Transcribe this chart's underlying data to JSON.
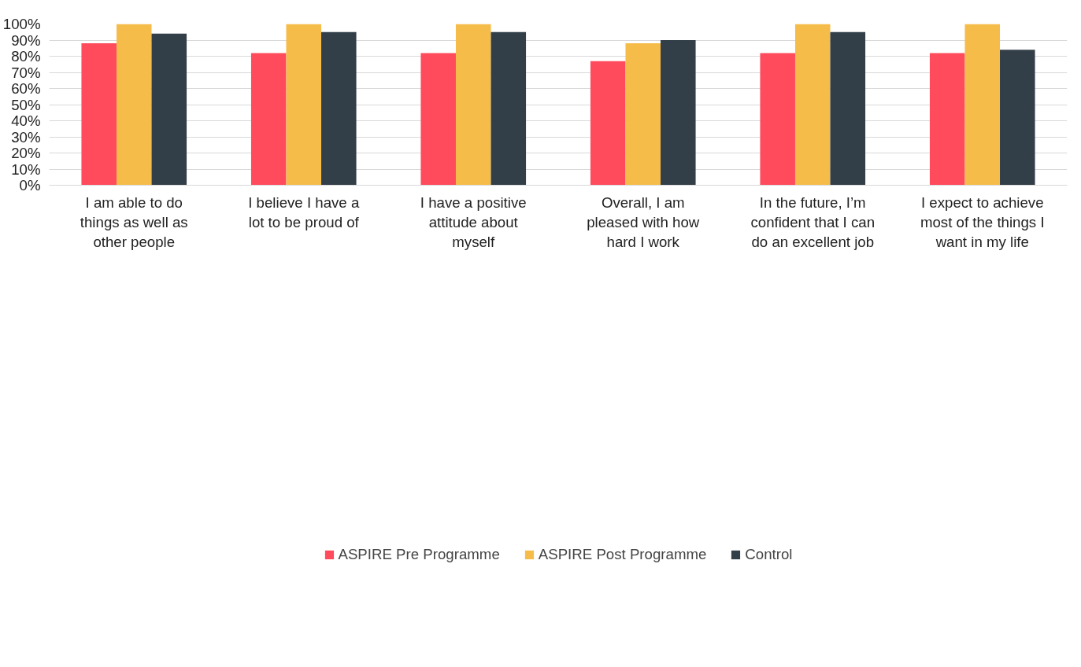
{
  "chart_data": {
    "type": "bar",
    "categories": [
      "I am able to do things as well as other people",
      "I believe I have a lot to be proud of",
      "I have a positive attitude about myself",
      "Overall, I am pleased with how hard I work",
      "In the future, I’m confident that I can do an excellent job",
      "I expect to achieve most of the things I want in my life"
    ],
    "series": [
      {
        "name": "ASPIRE Pre Programme",
        "color": "#ff4b5c",
        "values": [
          88,
          82,
          82,
          77,
          82,
          82
        ]
      },
      {
        "name": "ASPIRE Post Programme",
        "color": "#f5bc4a",
        "values": [
          100,
          100,
          100,
          88,
          100,
          100
        ]
      },
      {
        "name": "Control",
        "color": "#333f48",
        "values": [
          94,
          95,
          95,
          90,
          95,
          84
        ]
      }
    ],
    "ylim": [
      0,
      100
    ],
    "yticks": [
      {
        "value": 0,
        "label": "0%"
      },
      {
        "value": 10,
        "label": "10%"
      },
      {
        "value": 20,
        "label": "20%"
      },
      {
        "value": 30,
        "label": "30%"
      },
      {
        "value": 40,
        "label": "40%"
      },
      {
        "value": 50,
        "label": "50%"
      },
      {
        "value": 60,
        "label": "60%"
      },
      {
        "value": 70,
        "label": "70%"
      },
      {
        "value": 80,
        "label": "80%"
      },
      {
        "value": 90,
        "label": "90%"
      },
      {
        "value": 100,
        "label": "100%"
      }
    ],
    "grid": "y",
    "legend": "bottom"
  }
}
